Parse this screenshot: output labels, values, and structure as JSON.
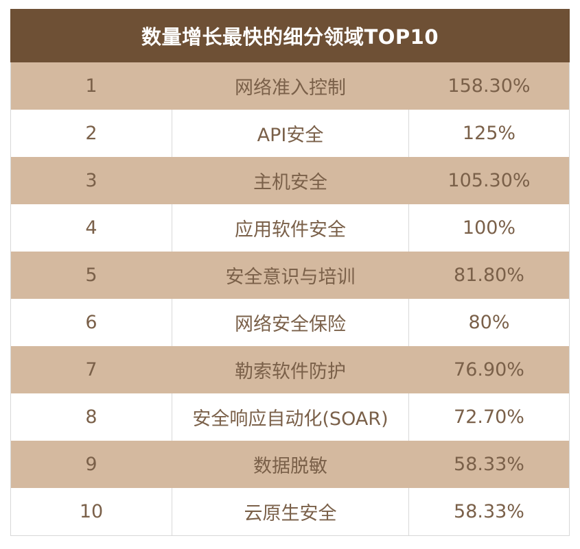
{
  "title": "数量增长最快的细分领域TOP10",
  "rows": [
    {
      "rank": "1",
      "name": "网络准入控制",
      "growth": "158.30%"
    },
    {
      "rank": "2",
      "name": "API安全",
      "growth": "125%"
    },
    {
      "rank": "3",
      "name": "主机安全",
      "growth": "105.30%"
    },
    {
      "rank": "4",
      "name": "应用软件安全",
      "growth": "100%"
    },
    {
      "rank": "5",
      "name": "安全意识与培训",
      "growth": "81.80%"
    },
    {
      "rank": "6",
      "name": "网络安全保险",
      "growth": "80%"
    },
    {
      "rank": "7",
      "name": "勒索软件防护",
      "growth": "76.90%"
    },
    {
      "rank": "8",
      "name": "安全响应自动化(SOAR)",
      "growth": "72.70%"
    },
    {
      "rank": "9",
      "name": "数据脱敏",
      "growth": "58.33%"
    },
    {
      "rank": "10",
      "name": "云原生安全",
      "growth": "58.33%"
    }
  ],
  "colors": {
    "header_bg": "#6e5035",
    "header_text": "#ffffff",
    "band_bg": "#d4b99f",
    "body_text": "#7a6049"
  }
}
